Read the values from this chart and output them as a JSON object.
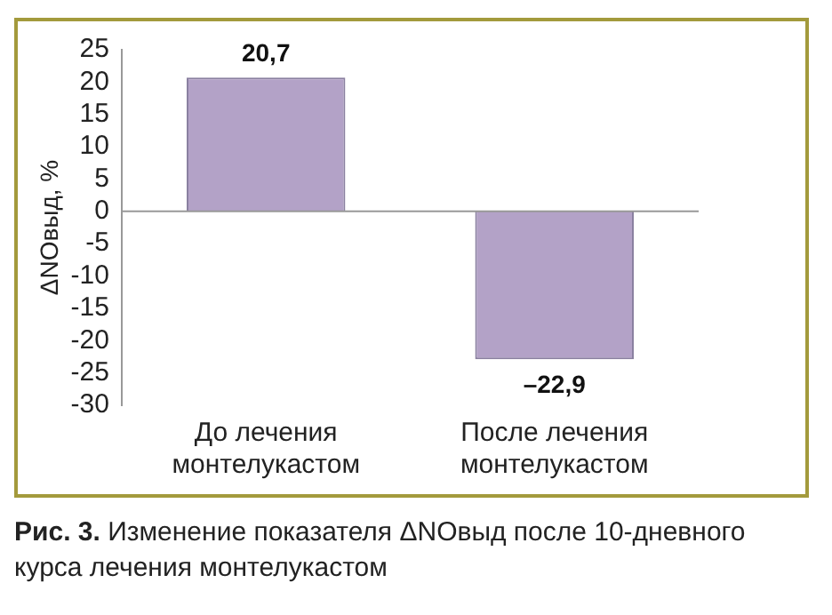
{
  "chart_data": {
    "type": "bar",
    "ylabel": "ΔNOвыд, %",
    "categories": [
      "До лечения монтелукастом",
      "После лечения монтелукастом"
    ],
    "values": [
      20.7,
      -22.9
    ],
    "color": "#b3a2c7",
    "value_labels": [
      "20,7",
      "–22,9"
    ],
    "ylim": [
      -30,
      25
    ],
    "yticks": [
      -30,
      -25,
      -20,
      -15,
      -10,
      -5,
      0,
      5,
      10,
      15,
      20,
      25
    ],
    "annotations": [
      "Рис. 3. Изменение показателя ΔNOвыд после 10-дневного курса лечения монтелукастом"
    ]
  }
}
